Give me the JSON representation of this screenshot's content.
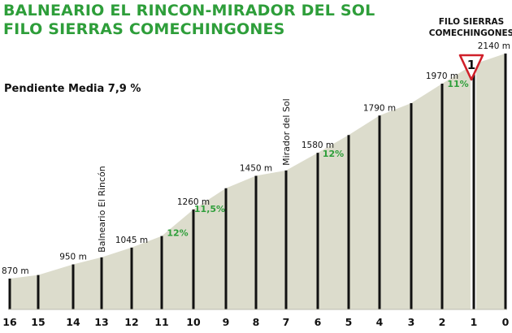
{
  "title": {
    "line1": "BALNEARIO EL RINCON-MIRADOR DEL SOL",
    "line2": "FILO SIERRAS COMECHINGONES"
  },
  "colors": {
    "title": "#2e9e3a",
    "gradient_label": "#2e9e3a",
    "profile_fill": "#dcdccc",
    "km_marker": "#111111",
    "summit_marker": "#d0202a"
  },
  "summit": {
    "line1": "FILO SIERRAS",
    "line2": "COMECHINGONES",
    "marker_label": "1",
    "marker_icon": "red-triangle-icon"
  },
  "chart_data": {
    "type": "area",
    "subtitle": "Pendiente Media 7,9 %",
    "km_ticks": [
      "16",
      "15",
      "14",
      "13",
      "12",
      "11",
      "10",
      "9",
      "8",
      "7",
      "6",
      "5",
      "4",
      "3",
      "2",
      "1",
      "0"
    ],
    "profile": [
      {
        "km": 16,
        "alt": 870
      },
      {
        "km": 15,
        "alt": 890
      },
      {
        "km": 14,
        "alt": 950
      },
      {
        "km": 13,
        "alt": 990
      },
      {
        "km": 12,
        "alt": 1045
      },
      {
        "km": 11,
        "alt": 1110
      },
      {
        "km": 10,
        "alt": 1260
      },
      {
        "km": 9,
        "alt": 1380
      },
      {
        "km": 8,
        "alt": 1450
      },
      {
        "km": 7,
        "alt": 1480
      },
      {
        "km": 6,
        "alt": 1580
      },
      {
        "km": 5,
        "alt": 1680
      },
      {
        "km": 4,
        "alt": 1790
      },
      {
        "km": 3,
        "alt": 1860
      },
      {
        "km": 2,
        "alt": 1970
      },
      {
        "km": 1,
        "alt": 2080
      },
      {
        "km": 0,
        "alt": 2140
      }
    ],
    "altitude_labels": [
      {
        "km": 16,
        "text": "870 m"
      },
      {
        "km": 14,
        "text": "950 m"
      },
      {
        "km": 12,
        "text": "1045 m"
      },
      {
        "km": 10,
        "text": "1260 m"
      },
      {
        "km": 8,
        "text": "1450 m"
      },
      {
        "km": 6,
        "text": "1580 m"
      },
      {
        "km": 4,
        "text": "1790 m"
      },
      {
        "km": 2,
        "text": "1970 m"
      },
      {
        "km": 0,
        "text": "2140 m"
      }
    ],
    "gradient_labels": [
      {
        "km": 10.5,
        "text": "12%"
      },
      {
        "km": 9.5,
        "text": "11,5%"
      },
      {
        "km": 5.5,
        "text": "12%"
      },
      {
        "km": 1.5,
        "text": "11%"
      }
    ],
    "place_labels": [
      {
        "km": 13,
        "text": "Balneario El Rincón"
      },
      {
        "km": 7,
        "text": "Mirador del Sol"
      }
    ],
    "grid": false
  }
}
